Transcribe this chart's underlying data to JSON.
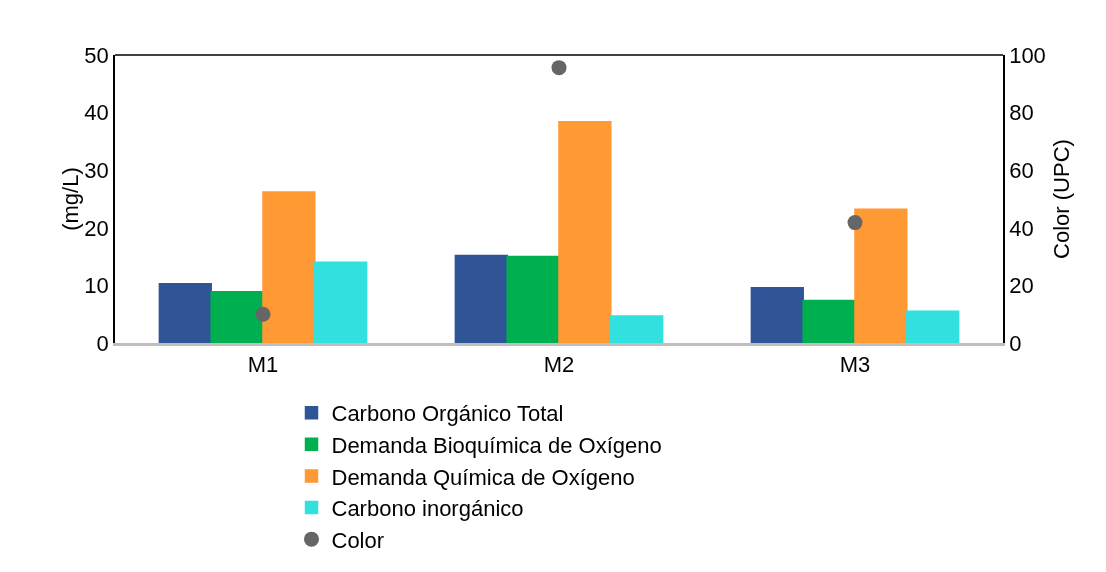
{
  "chart_data": {
    "type": "bar",
    "categories": [
      "M1",
      "M2",
      "M3"
    ],
    "ylabel": "(mg/L)",
    "y2label": "Color (UPC)",
    "ylim": [
      0,
      50
    ],
    "yticks": [
      0,
      10,
      20,
      30,
      40,
      50
    ],
    "y2lim": [
      0,
      100
    ],
    "y2ticks": [
      0,
      20,
      40,
      60,
      80,
      100
    ],
    "grid": false,
    "legend": "bottom",
    "series": [
      {
        "name": "Carbono Orgánico Total",
        "color": "#2f5597",
        "values": [
          10.3,
          15.2,
          9.6
        ]
      },
      {
        "name": "Demanda Bioquímica de Oxígeno",
        "color": "#00b050",
        "values": [
          8.9,
          15.0,
          7.4
        ]
      },
      {
        "name": "Demanda Química de Oxígeno",
        "color": "#ff9933",
        "values": [
          26.2,
          38.4,
          23.2
        ]
      },
      {
        "name": "Carbono inorgánico",
        "color": "#33e0e0",
        "values": [
          14.0,
          4.7,
          5.5
        ]
      },
      {
        "name": "Color",
        "type": "scatter",
        "axis": "y2",
        "marker": "circle",
        "color": "#666666",
        "values": [
          10,
          95.6,
          41.8
        ]
      }
    ]
  }
}
